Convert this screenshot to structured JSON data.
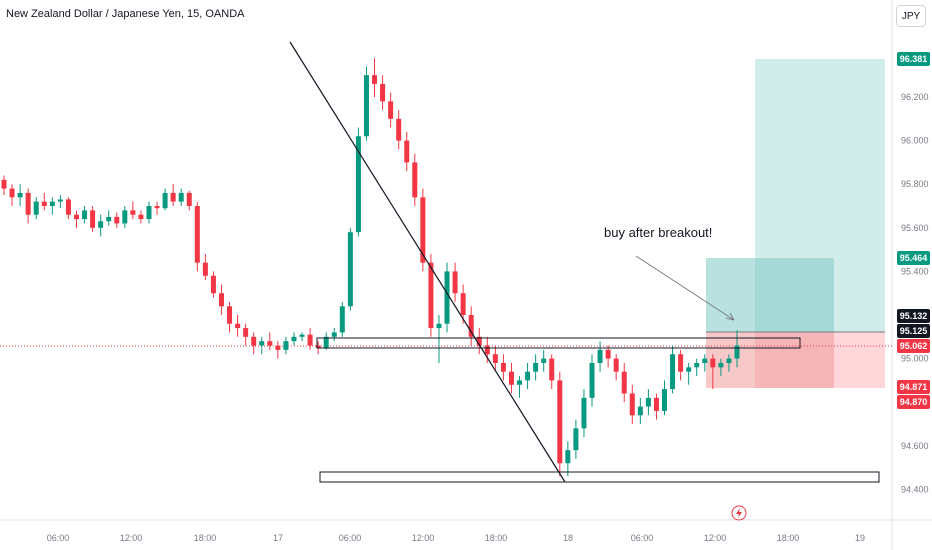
{
  "header": {
    "title": "New Zealand Dollar / Japanese Yen, 15, OANDA",
    "unit_button": "JPY"
  },
  "chart_data": {
    "type": "candlestick",
    "title": "New Zealand Dollar / Japanese Yen, 15, OANDA",
    "y_axis_ticks": [
      96.2,
      96.0,
      95.8,
      95.6,
      95.4,
      95.0,
      94.6,
      94.4
    ],
    "y_tick_labels": [
      "96.200",
      "96.000",
      "95.800",
      "95.600",
      "95.400",
      "95.000",
      "94.600",
      "94.400"
    ],
    "x_tick_labels": [
      "06:00",
      "12:00",
      "18:00",
      "17",
      "06:00",
      "12:00",
      "18:00",
      "18",
      "06:00",
      "12:00",
      "18:00",
      "19"
    ],
    "ylim": [
      94.26,
      96.52
    ],
    "price_labels": [
      {
        "name": "tp",
        "value": 96.381,
        "text": "96.381",
        "color": "#089981"
      },
      {
        "name": "entry-zone-top",
        "value": 95.464,
        "text": "95.464",
        "color": "#089981"
      },
      {
        "name": "last-high",
        "value": 95.132,
        "text": "95.132",
        "color": "#131722"
      },
      {
        "name": "entry",
        "value": 95.125,
        "text": "95.125",
        "color": "#131722"
      },
      {
        "name": "current-price",
        "value": 95.062,
        "text": "95.062",
        "color": "#f23645"
      },
      {
        "name": "stop-1",
        "value": 94.871,
        "text": "94.871",
        "color": "#f23645"
      },
      {
        "name": "stop-2",
        "value": 94.87,
        "text": "94.870",
        "color": "#f23645"
      }
    ],
    "annotation": "buy after breakout!",
    "colors": {
      "up": "#089981",
      "down": "#f23645",
      "profit_zone": "#b2dfdb",
      "loss_zone": "#ffcdd2"
    },
    "series": [
      {
        "values": [
          [
            95.82,
            95.84,
            95.75,
            95.78
          ],
          [
            95.78,
            95.8,
            95.7,
            95.74
          ],
          [
            95.74,
            95.8,
            95.7,
            95.76
          ],
          [
            95.76,
            95.78,
            95.62,
            95.66
          ],
          [
            95.66,
            95.74,
            95.64,
            95.72
          ],
          [
            95.72,
            95.76,
            95.68,
            95.7
          ],
          [
            95.7,
            95.74,
            95.66,
            95.72
          ],
          [
            95.72,
            95.75,
            95.69,
            95.73
          ],
          [
            95.73,
            95.74,
            95.64,
            95.66
          ],
          [
            95.66,
            95.68,
            95.6,
            95.64
          ],
          [
            95.64,
            95.7,
            95.62,
            95.68
          ],
          [
            95.68,
            95.7,
            95.58,
            95.6
          ],
          [
            95.6,
            95.66,
            95.56,
            95.63
          ],
          [
            95.63,
            95.68,
            95.61,
            95.65
          ],
          [
            95.65,
            95.67,
            95.6,
            95.62
          ],
          [
            95.62,
            95.7,
            95.6,
            95.68
          ],
          [
            95.68,
            95.72,
            95.64,
            95.66
          ],
          [
            95.66,
            95.68,
            95.62,
            95.64
          ],
          [
            95.64,
            95.72,
            95.62,
            95.7
          ],
          [
            95.7,
            95.72,
            95.66,
            95.69
          ],
          [
            95.69,
            95.78,
            95.68,
            95.76
          ],
          [
            95.76,
            95.8,
            95.7,
            95.72
          ],
          [
            95.72,
            95.78,
            95.7,
            95.76
          ],
          [
            95.76,
            95.77,
            95.68,
            95.7
          ],
          [
            95.7,
            95.72,
            95.4,
            95.44
          ],
          [
            95.44,
            95.48,
            95.36,
            95.38
          ],
          [
            95.38,
            95.4,
            95.28,
            95.3
          ],
          [
            95.3,
            95.34,
            95.2,
            95.24
          ],
          [
            95.24,
            95.26,
            95.12,
            95.16
          ],
          [
            95.16,
            95.2,
            95.1,
            95.14
          ],
          [
            95.14,
            95.16,
            95.06,
            95.1
          ],
          [
            95.1,
            95.12,
            95.02,
            95.06
          ],
          [
            95.06,
            95.1,
            95.02,
            95.08
          ],
          [
            95.08,
            95.12,
            95.04,
            95.06
          ],
          [
            95.06,
            95.08,
            95.0,
            95.04
          ],
          [
            95.04,
            95.1,
            95.02,
            95.08
          ],
          [
            95.08,
            95.12,
            95.06,
            95.1
          ],
          [
            95.1,
            95.12,
            95.08,
            95.11
          ],
          [
            95.11,
            95.14,
            95.04,
            95.06
          ],
          [
            95.06,
            95.08,
            95.02,
            95.05
          ],
          [
            95.05,
            95.12,
            95.04,
            95.1
          ],
          [
            95.1,
            95.14,
            95.08,
            95.12
          ],
          [
            95.12,
            95.26,
            95.1,
            95.24
          ],
          [
            95.24,
            95.6,
            95.22,
            95.58
          ],
          [
            95.58,
            96.06,
            95.56,
            96.02
          ],
          [
            96.02,
            96.34,
            96.0,
            96.3
          ],
          [
            96.3,
            96.38,
            96.2,
            96.26
          ],
          [
            96.26,
            96.3,
            96.14,
            96.18
          ],
          [
            96.18,
            96.22,
            96.06,
            96.1
          ],
          [
            96.1,
            96.14,
            95.96,
            96.0
          ],
          [
            96.0,
            96.04,
            95.86,
            95.9
          ],
          [
            95.9,
            95.94,
            95.7,
            95.74
          ],
          [
            95.74,
            95.78,
            95.4,
            95.44
          ],
          [
            95.44,
            95.48,
            95.1,
            95.14
          ],
          [
            95.14,
            95.2,
            94.98,
            95.16
          ],
          [
            95.16,
            95.44,
            95.12,
            95.4
          ],
          [
            95.4,
            95.44,
            95.26,
            95.3
          ],
          [
            95.3,
            95.34,
            95.16,
            95.2
          ],
          [
            95.2,
            95.24,
            95.06,
            95.1
          ],
          [
            95.1,
            95.14,
            95.02,
            95.06
          ],
          [
            95.06,
            95.1,
            94.98,
            95.02
          ],
          [
            95.02,
            95.06,
            94.94,
            94.98
          ],
          [
            94.98,
            95.02,
            94.9,
            94.94
          ],
          [
            94.94,
            94.98,
            94.84,
            94.88
          ],
          [
            94.88,
            94.92,
            94.82,
            94.9
          ],
          [
            94.9,
            94.98,
            94.86,
            94.94
          ],
          [
            94.94,
            95.02,
            94.9,
            94.98
          ],
          [
            94.98,
            95.04,
            94.94,
            95.0
          ],
          [
            95.0,
            95.02,
            94.86,
            94.9
          ],
          [
            94.9,
            94.94,
            94.46,
            94.52
          ],
          [
            94.52,
            94.62,
            94.46,
            94.58
          ],
          [
            94.58,
            94.72,
            94.54,
            94.68
          ],
          [
            94.68,
            94.86,
            94.64,
            94.82
          ],
          [
            94.82,
            95.02,
            94.78,
            94.98
          ],
          [
            94.98,
            95.08,
            94.94,
            95.04
          ],
          [
            95.04,
            95.06,
            94.96,
            95.0
          ],
          [
            95.0,
            95.02,
            94.9,
            94.94
          ],
          [
            94.94,
            94.98,
            94.8,
            94.84
          ],
          [
            94.84,
            94.88,
            94.7,
            94.74
          ],
          [
            94.74,
            94.82,
            94.7,
            94.78
          ],
          [
            94.78,
            94.86,
            94.74,
            94.82
          ],
          [
            94.82,
            94.84,
            94.72,
            94.76
          ],
          [
            94.76,
            94.9,
            94.74,
            94.86
          ],
          [
            94.86,
            95.06,
            94.84,
            95.02
          ],
          [
            95.02,
            95.04,
            94.9,
            94.94
          ],
          [
            94.94,
            94.98,
            94.88,
            94.96
          ],
          [
            94.96,
            95.0,
            94.92,
            94.98
          ],
          [
            94.98,
            95.02,
            94.94,
            95.0
          ],
          [
            95.0,
            95.02,
            94.86,
            94.96
          ],
          [
            94.96,
            95.0,
            94.92,
            94.98
          ],
          [
            94.98,
            95.02,
            94.94,
            95.0
          ],
          [
            95.0,
            95.13,
            94.96,
            95.06
          ]
        ]
      }
    ]
  }
}
